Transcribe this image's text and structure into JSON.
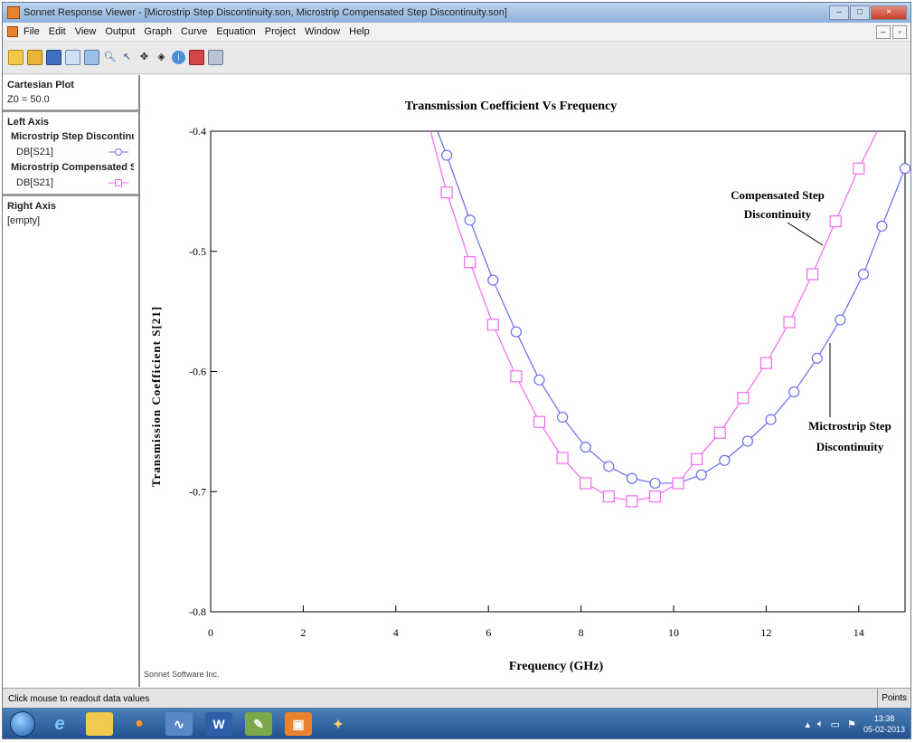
{
  "window": {
    "title": "Sonnet Response Viewer - [Microstrip Step Discontinuity.son, Microstrip  Compensated Step Discontinuity.son]",
    "controls": [
      "–",
      "□",
      "×"
    ]
  },
  "menubar": {
    "items": [
      "File",
      "Edit",
      "View",
      "Output",
      "Graph",
      "Curve",
      "Equation",
      "Project",
      "Window",
      "Help"
    ]
  },
  "toolbar": {
    "icons": [
      "new-file-icon",
      "open-folder-icon",
      "save-icon",
      "copy-icon",
      "paste-icon",
      "zoom-in-icon",
      "zoom-out-icon",
      "pan-icon",
      "move-icon",
      "info-icon",
      "freeze-icon",
      "print-icon"
    ]
  },
  "sidebar": {
    "plot_type": "Cartesian Plot",
    "z0": "Z0 = 50.0",
    "left_axis_title": "Left Axis",
    "series1_name": "Microstrip Step Discontinuity",
    "series1_param": "DB[S21]",
    "series2_name": "Microstrip  Compensated Step Discontinuity",
    "series2_param": "DB[S21]",
    "right_axis_title": "Right Axis",
    "right_axis_value": "[empty]"
  },
  "plot": {
    "footer": "Sonnet Software Inc."
  },
  "status": {
    "text": "Click mouse to readout data values",
    "right": "Points"
  },
  "taskbar": {
    "time": "13:38",
    "date": "05-02-2013"
  },
  "colors": {
    "series1": "#6b6bf0",
    "series2": "#f26af2",
    "axis": "#000000"
  },
  "chart_data": {
    "type": "line",
    "title": "Transmission Coefficient Vs Frequency",
    "xlabel": "Frequency (GHz)",
    "ylabel": "Transmission Coefficient S[21]",
    "xlim": [
      0,
      15
    ],
    "ylim": [
      -0.8,
      -0.4
    ],
    "xticks": [
      0,
      2,
      4,
      6,
      8,
      10,
      12,
      14
    ],
    "yticks": [
      -0.4,
      -0.5,
      -0.6,
      -0.7,
      -0.8
    ],
    "grid": false,
    "annotations": [
      {
        "text_lines": [
          "Compensated Step",
          "Discontinuity"
        ],
        "series": 1
      },
      {
        "text_lines": [
          "Mictrostrip Step",
          "Discontinuity"
        ],
        "series": 0
      }
    ],
    "series": [
      {
        "name": "Microstrip Step Discontinuity",
        "marker": "circle",
        "x": [
          4.9,
          5.1,
          5.6,
          6.1,
          6.6,
          7.1,
          7.6,
          8.1,
          8.6,
          9.1,
          9.6,
          10.1,
          10.6,
          11.1,
          11.6,
          12.1,
          12.6,
          13.1,
          13.6,
          14.1,
          14.5,
          15.0
        ],
        "y": [
          -0.4,
          -0.42,
          -0.474,
          -0.524,
          -0.567,
          -0.607,
          -0.638,
          -0.663,
          -0.679,
          -0.689,
          -0.693,
          -0.693,
          -0.686,
          -0.674,
          -0.658,
          -0.64,
          -0.617,
          -0.589,
          -0.557,
          -0.519,
          -0.479,
          -0.431
        ]
      },
      {
        "name": "Microstrip  Compensated Step Discontinuity",
        "marker": "square",
        "x": [
          4.75,
          5.1,
          5.6,
          6.1,
          6.6,
          7.1,
          7.6,
          8.1,
          8.6,
          9.1,
          9.6,
          10.1,
          10.5,
          11.0,
          11.5,
          12.0,
          12.5,
          13.0,
          13.5,
          14.0,
          14.4
        ],
        "y": [
          -0.4,
          -0.451,
          -0.509,
          -0.561,
          -0.604,
          -0.642,
          -0.672,
          -0.693,
          -0.704,
          -0.708,
          -0.704,
          -0.693,
          -0.673,
          -0.651,
          -0.622,
          -0.593,
          -0.559,
          -0.519,
          -0.475,
          -0.431,
          -0.4
        ]
      }
    ]
  }
}
